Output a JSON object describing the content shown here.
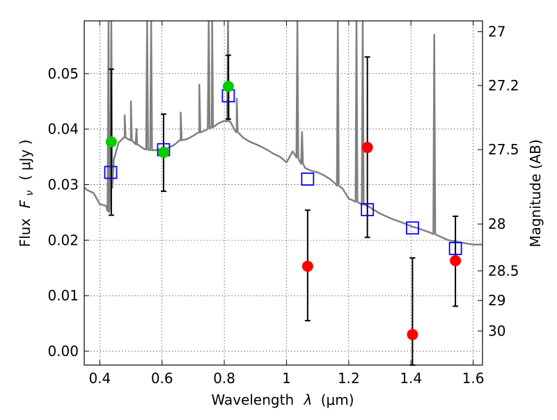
{
  "chart_data": {
    "type": "scatter",
    "xlabel_text": "Wavelength",
    "xlabel_symbol": "λ",
    "xlabel_unit": "(μm)",
    "ylabel_text": "Flux",
    "ylabel_symbol": "F",
    "ylabel_subscript": "ν",
    "ylabel_unit": "( μJy )",
    "y2label": "Magnitude (AB)",
    "xlim": [
      0.35,
      1.63
    ],
    "ylim": [
      -0.0025,
      0.0595
    ],
    "grid": true,
    "x_ticks": [
      0.4,
      0.6,
      0.8,
      1.0,
      1.2,
      1.4,
      1.6
    ],
    "x_tick_labels": [
      "0.4",
      "0.6",
      "0.8",
      "1",
      "1.2",
      "1.4",
      "1.6"
    ],
    "y_ticks": [
      0.0,
      0.01,
      0.02,
      0.03,
      0.04,
      0.05
    ],
    "y_tick_labels": [
      "0.00",
      "0.01",
      "0.02",
      "0.03",
      "0.04",
      "0.05"
    ],
    "y2_ticks": [
      27.0,
      27.2,
      27.5,
      28.0,
      28.5,
      29.0,
      30.0
    ],
    "y2_tick_labels": [
      "27",
      "27.2",
      "27.5",
      "28",
      "28.5",
      "29",
      "30"
    ],
    "series": [
      {
        "kind": "model_spectrum",
        "color": "#808080",
        "x": [
          0.35,
          0.36,
          0.38,
          0.4,
          0.42,
          0.43,
          0.445,
          0.46,
          0.48,
          0.5,
          0.52,
          0.54,
          0.56,
          0.58,
          0.6,
          0.62,
          0.64,
          0.66,
          0.68,
          0.7,
          0.72,
          0.74,
          0.76,
          0.78,
          0.8,
          0.82,
          0.84,
          0.86,
          0.88,
          0.9,
          0.92,
          0.94,
          0.96,
          0.98,
          1.0,
          1.02,
          1.04,
          1.06,
          1.08,
          1.1,
          1.12,
          1.14,
          1.16,
          1.18,
          1.2,
          1.22,
          1.24,
          1.26,
          1.28,
          1.3,
          1.32,
          1.34,
          1.36,
          1.38,
          1.4,
          1.42,
          1.44,
          1.46,
          1.48,
          1.5,
          1.52,
          1.54,
          1.56,
          1.58,
          1.6,
          1.63
        ],
        "y": [
          0.0295,
          0.029,
          0.0285,
          0.0265,
          0.0262,
          0.025,
          0.0345,
          0.0375,
          0.0385,
          0.038,
          0.0372,
          0.0365,
          0.0362,
          0.0362,
          0.0365,
          0.0366,
          0.0372,
          0.038,
          0.0382,
          0.0388,
          0.0394,
          0.0398,
          0.0403,
          0.041,
          0.0415,
          0.0413,
          0.0395,
          0.0385,
          0.0378,
          0.0373,
          0.0368,
          0.0362,
          0.0355,
          0.035,
          0.034,
          0.036,
          0.0345,
          0.033,
          0.0325,
          0.0322,
          0.0317,
          0.031,
          0.03,
          0.0293,
          0.0275,
          0.027,
          0.0265,
          0.0262,
          0.0255,
          0.0248,
          0.0243,
          0.0238,
          0.0234,
          0.023,
          0.0225,
          0.0222,
          0.0218,
          0.0214,
          0.021,
          0.0205,
          0.02,
          0.0198,
          0.0196,
          0.0194,
          0.0192,
          0.0192
        ],
        "emission_lines": [
          {
            "x": 0.428,
            "peak": 0.0595
          },
          {
            "x": 0.437,
            "peak": 0.0595
          },
          {
            "x": 0.48,
            "peak": 0.0425
          },
          {
            "x": 0.5,
            "peak": 0.045
          },
          {
            "x": 0.518,
            "peak": 0.04
          },
          {
            "x": 0.552,
            "peak": 0.0595
          },
          {
            "x": 0.565,
            "peak": 0.0595
          },
          {
            "x": 0.66,
            "peak": 0.043
          },
          {
            "x": 0.72,
            "peak": 0.048
          },
          {
            "x": 0.75,
            "peak": 0.0595
          },
          {
            "x": 0.761,
            "peak": 0.0595
          },
          {
            "x": 0.812,
            "peak": 0.0595
          },
          {
            "x": 0.84,
            "peak": 0.0455
          },
          {
            "x": 1.035,
            "peak": 0.0595
          },
          {
            "x": 1.05,
            "peak": 0.0395
          },
          {
            "x": 1.165,
            "peak": 0.0595
          },
          {
            "x": 1.225,
            "peak": 0.0595
          },
          {
            "x": 1.245,
            "peak": 0.0595
          },
          {
            "x": 1.475,
            "peak": 0.057
          }
        ]
      },
      {
        "kind": "model_photometry",
        "marker": "open-square",
        "color": "#0000ff",
        "x": [
          0.435,
          0.605,
          0.813,
          1.068,
          1.26,
          1.405,
          1.543
        ],
        "y": [
          0.0322,
          0.0363,
          0.046,
          0.031,
          0.0255,
          0.0222,
          0.0185
        ]
      },
      {
        "kind": "observed_detection",
        "marker": "filled-circle",
        "color": "#00cc00",
        "x": [
          0.437,
          0.605,
          0.813
        ],
        "y": [
          0.0377,
          0.0358,
          0.0477
        ],
        "yerr_low": [
          0.0245,
          0.0288,
          0.0418
        ],
        "yerr_high": [
          0.0508,
          0.0427,
          0.0533
        ]
      },
      {
        "kind": "observed_lowsn",
        "marker": "filled-circle",
        "color": "#ff0000",
        "x": [
          1.068,
          1.26,
          1.405,
          1.543
        ],
        "y": [
          0.0153,
          0.0367,
          0.003,
          0.0163
        ],
        "yerr_low": [
          0.0055,
          0.0205,
          -0.0025,
          0.0081
        ],
        "yerr_high": [
          0.0254,
          0.053,
          0.0168,
          0.0243
        ]
      }
    ]
  }
}
